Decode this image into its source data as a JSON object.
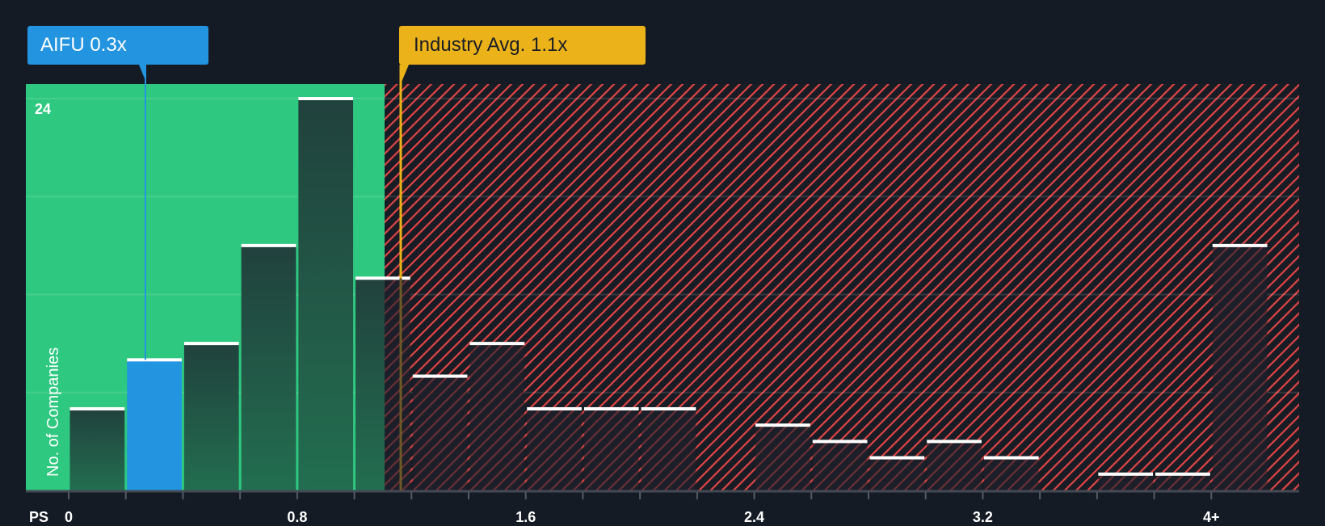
{
  "chart_data": {
    "type": "bar",
    "title": "",
    "xlabel": "PS",
    "ylabel": "No. of Companies",
    "x_tick_labels": [
      "0",
      "0.8",
      "1.6",
      "2.4",
      "3.2",
      "4+"
    ],
    "x_ticks": [
      0,
      0.8,
      1.6,
      2.4,
      3.2,
      4.0
    ],
    "y_tick_labels": [
      "24"
    ],
    "ylim": [
      0,
      25
    ],
    "grid": true,
    "bin_width": 0.2,
    "bins": [
      {
        "start": 0.0,
        "end": 0.2,
        "value": 5
      },
      {
        "start": 0.2,
        "end": 0.4,
        "value": 8,
        "highlight": "company"
      },
      {
        "start": 0.4,
        "end": 0.6,
        "value": 9
      },
      {
        "start": 0.6,
        "end": 0.8,
        "value": 15
      },
      {
        "start": 0.8,
        "end": 1.0,
        "value": 24
      },
      {
        "start": 1.0,
        "end": 1.2,
        "value": 13
      },
      {
        "start": 1.2,
        "end": 1.4,
        "value": 7
      },
      {
        "start": 1.4,
        "end": 1.6,
        "value": 9
      },
      {
        "start": 1.6,
        "end": 1.8,
        "value": 5
      },
      {
        "start": 1.8,
        "end": 2.0,
        "value": 5
      },
      {
        "start": 2.0,
        "end": 2.2,
        "value": 5
      },
      {
        "start": 2.2,
        "end": 2.4,
        "value": 0
      },
      {
        "start": 2.4,
        "end": 2.6,
        "value": 4
      },
      {
        "start": 2.6,
        "end": 2.8,
        "value": 3
      },
      {
        "start": 2.8,
        "end": 3.0,
        "value": 2
      },
      {
        "start": 3.0,
        "end": 3.2,
        "value": 3
      },
      {
        "start": 3.2,
        "end": 3.4,
        "value": 2
      },
      {
        "start": 3.4,
        "end": 3.6,
        "value": 0
      },
      {
        "start": 3.6,
        "end": 3.8,
        "value": 1
      },
      {
        "start": 3.8,
        "end": 4.0,
        "value": 1
      },
      {
        "start": 4.0,
        "end": 4.2,
        "value": 15,
        "label": "4+"
      }
    ],
    "annotations": [
      {
        "label": "AIFU 0.3x",
        "x": 0.3,
        "color": "#2394df"
      },
      {
        "label": "Industry Avg. 1.1x",
        "x": 1.1,
        "color": "#ecb21a"
      }
    ],
    "zones": [
      {
        "name": "undervalued",
        "from": 0,
        "to": 1.05,
        "color": "#2ec880"
      },
      {
        "name": "overvalued",
        "from": 1.05,
        "to": 4.2,
        "color": "#e04545",
        "pattern": "hatched"
      }
    ]
  },
  "callouts": {
    "company": "AIFU 0.3x",
    "industry": "Industry Avg. 1.1x"
  },
  "axis": {
    "y_title": "No. of Companies",
    "y_max_label": "24",
    "x_title": "PS",
    "x_labels": [
      "0",
      "0.8",
      "1.6",
      "2.4",
      "3.2",
      "4+"
    ]
  },
  "colors": {
    "background": "#151b24",
    "green_zone": "#2ec880",
    "red_hatch": "#e04545",
    "company": "#2394df",
    "industry": "#ecb21a",
    "bar_dark": "#1f4a3e"
  }
}
